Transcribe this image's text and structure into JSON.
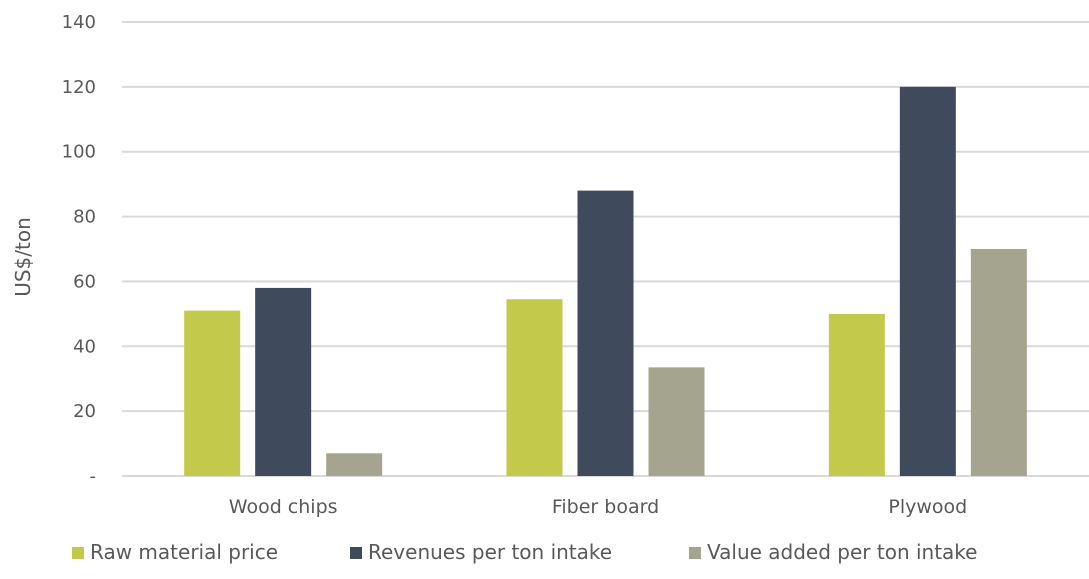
{
  "chart_data": {
    "type": "bar",
    "title": "",
    "xlabel": "",
    "ylabel": "US$/ton",
    "categories": [
      "Wood chips",
      "Fiber board",
      "Plywood"
    ],
    "series": [
      {
        "name": "Raw material price",
        "color": "#c3c94b",
        "values": [
          51,
          54.5,
          50
        ]
      },
      {
        "name": "Revenues per ton intake",
        "color": "#3f4b5c",
        "values": [
          58,
          88,
          120
        ]
      },
      {
        "name": "Value added per ton intake",
        "color": "#a5a48f",
        "values": [
          7,
          33.5,
          70
        ]
      }
    ],
    "ylim": [
      0,
      140
    ],
    "y_ticks": [
      0,
      20,
      40,
      60,
      80,
      100,
      120,
      140
    ],
    "y_tick_labels": [
      "-",
      "20",
      "40",
      "60",
      "80",
      "100",
      "120",
      "140"
    ],
    "grid": true,
    "gridline_color": "#d9d9d9",
    "legend_position": "bottom"
  }
}
